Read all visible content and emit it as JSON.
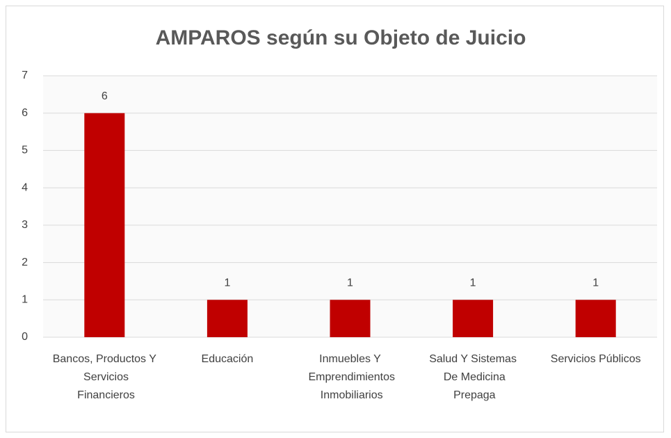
{
  "chart_data": {
    "type": "bar",
    "title": "AMPAROS según su Objeto de Juicio",
    "categories": [
      "Bancos, Productos Y Servicios Financieros",
      "Educación",
      "Inmuebles Y Emprendimientos Inmobiliarios",
      "Salud Y Sistemas De Medicina Prepaga",
      "Servicios Públicos"
    ],
    "values": [
      6,
      1,
      1,
      1,
      1
    ],
    "color": "#c00000",
    "ylim": [
      0,
      7
    ],
    "yticks": [
      0,
      1,
      2,
      3,
      4,
      5,
      6,
      7
    ],
    "grid": true
  }
}
